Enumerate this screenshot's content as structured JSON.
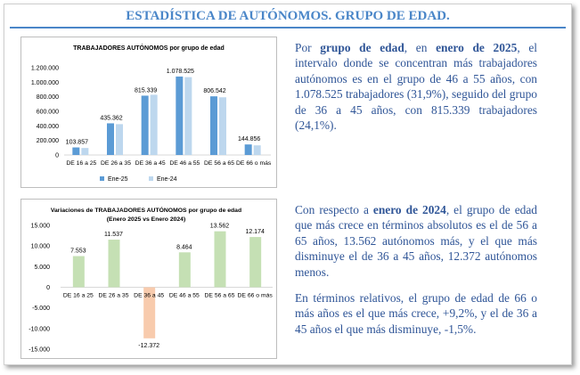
{
  "header": {
    "title": "ESTADÍSTICA DE AUTÓNOMOS. GRUPO DE EDAD."
  },
  "chart_data": [
    {
      "type": "bar",
      "title": "TRABAJADORES AUTÓNOMOS por grupo de edad",
      "categories": [
        "DE 16 a 25",
        "DE 26 a 35",
        "DE 36 a 45",
        "DE 46 a 55",
        "DE 56 a 65",
        "DE 66 o más"
      ],
      "series": [
        {
          "name": "Ene-25",
          "values": [
            103857,
            435362,
            815339,
            1078525,
            806542,
            144856
          ],
          "color": "#5b9bd5"
        },
        {
          "name": "Ene-24",
          "values": [
            96304,
            423825,
            827711,
            1070061,
            792980,
            132682
          ],
          "color": "#bdd7ee"
        }
      ],
      "data_labels": [
        "103.857",
        "435.362",
        "815.339",
        "1.078.525",
        "806.542",
        "144.856"
      ],
      "yticks": [
        "0",
        "200.000",
        "400.000",
        "600.000",
        "800.000",
        "1.000.000",
        "1.200.000"
      ],
      "ylim": [
        0,
        1200000
      ],
      "legend": "bottom"
    },
    {
      "type": "bar",
      "title": "Variaciones de TRABAJADORES AUTÓNOMOS por grupo de edad",
      "subtitle": "(Enero 2025 vs Enero 2024)",
      "categories": [
        "DE 16 a 25",
        "DE 26 a 35",
        "DE 36 a 45",
        "DE 46 a 55",
        "DE 56 a 65",
        "DE 66 o más"
      ],
      "values": [
        7553,
        11537,
        -12372,
        8464,
        13562,
        12174
      ],
      "data_labels": [
        "7.553",
        "11.537",
        "-12.372",
        "8.464",
        "13.562",
        "12.174"
      ],
      "yticks": [
        "-15.000",
        "-10.000",
        "-5.000",
        "0",
        "5.000",
        "10.000",
        "15.000"
      ],
      "ylim": [
        -15000,
        15000
      ],
      "pos_color": "#c5e0b4",
      "neg_color": "#f8cbad"
    }
  ],
  "text": {
    "p1": [
      {
        "t": "Por "
      },
      {
        "t": "grupo de edad",
        "b": 1
      },
      {
        "t": ", en "
      },
      {
        "t": "enero de 2025",
        "b": 1
      },
      {
        "t": ", el intervalo donde se concentran más trabajadores autónomos es en el grupo de 46 a 55 años, con 1.078.525 trabajadores (31,9%), seguido del grupo de 36 a 45 años, con 815.339 trabajadores (24,1%)."
      }
    ],
    "p2": [
      {
        "t": "Con respecto a "
      },
      {
        "t": "enero de 2024",
        "b": 1
      },
      {
        "t": ", el grupo de edad que más crece en términos absolutos es el de 56 a 65 años, 13.562 autónomos más, y el que más disminuye el de 36 a 45 años, 12.372 autónomos menos."
      }
    ],
    "p3": [
      {
        "t": "En términos relativos, el grupo de edad de 66 o más años es el que más crece, +9,2%, y el de 36 a 45 años el que más disminuye, -1,5%."
      }
    ]
  }
}
